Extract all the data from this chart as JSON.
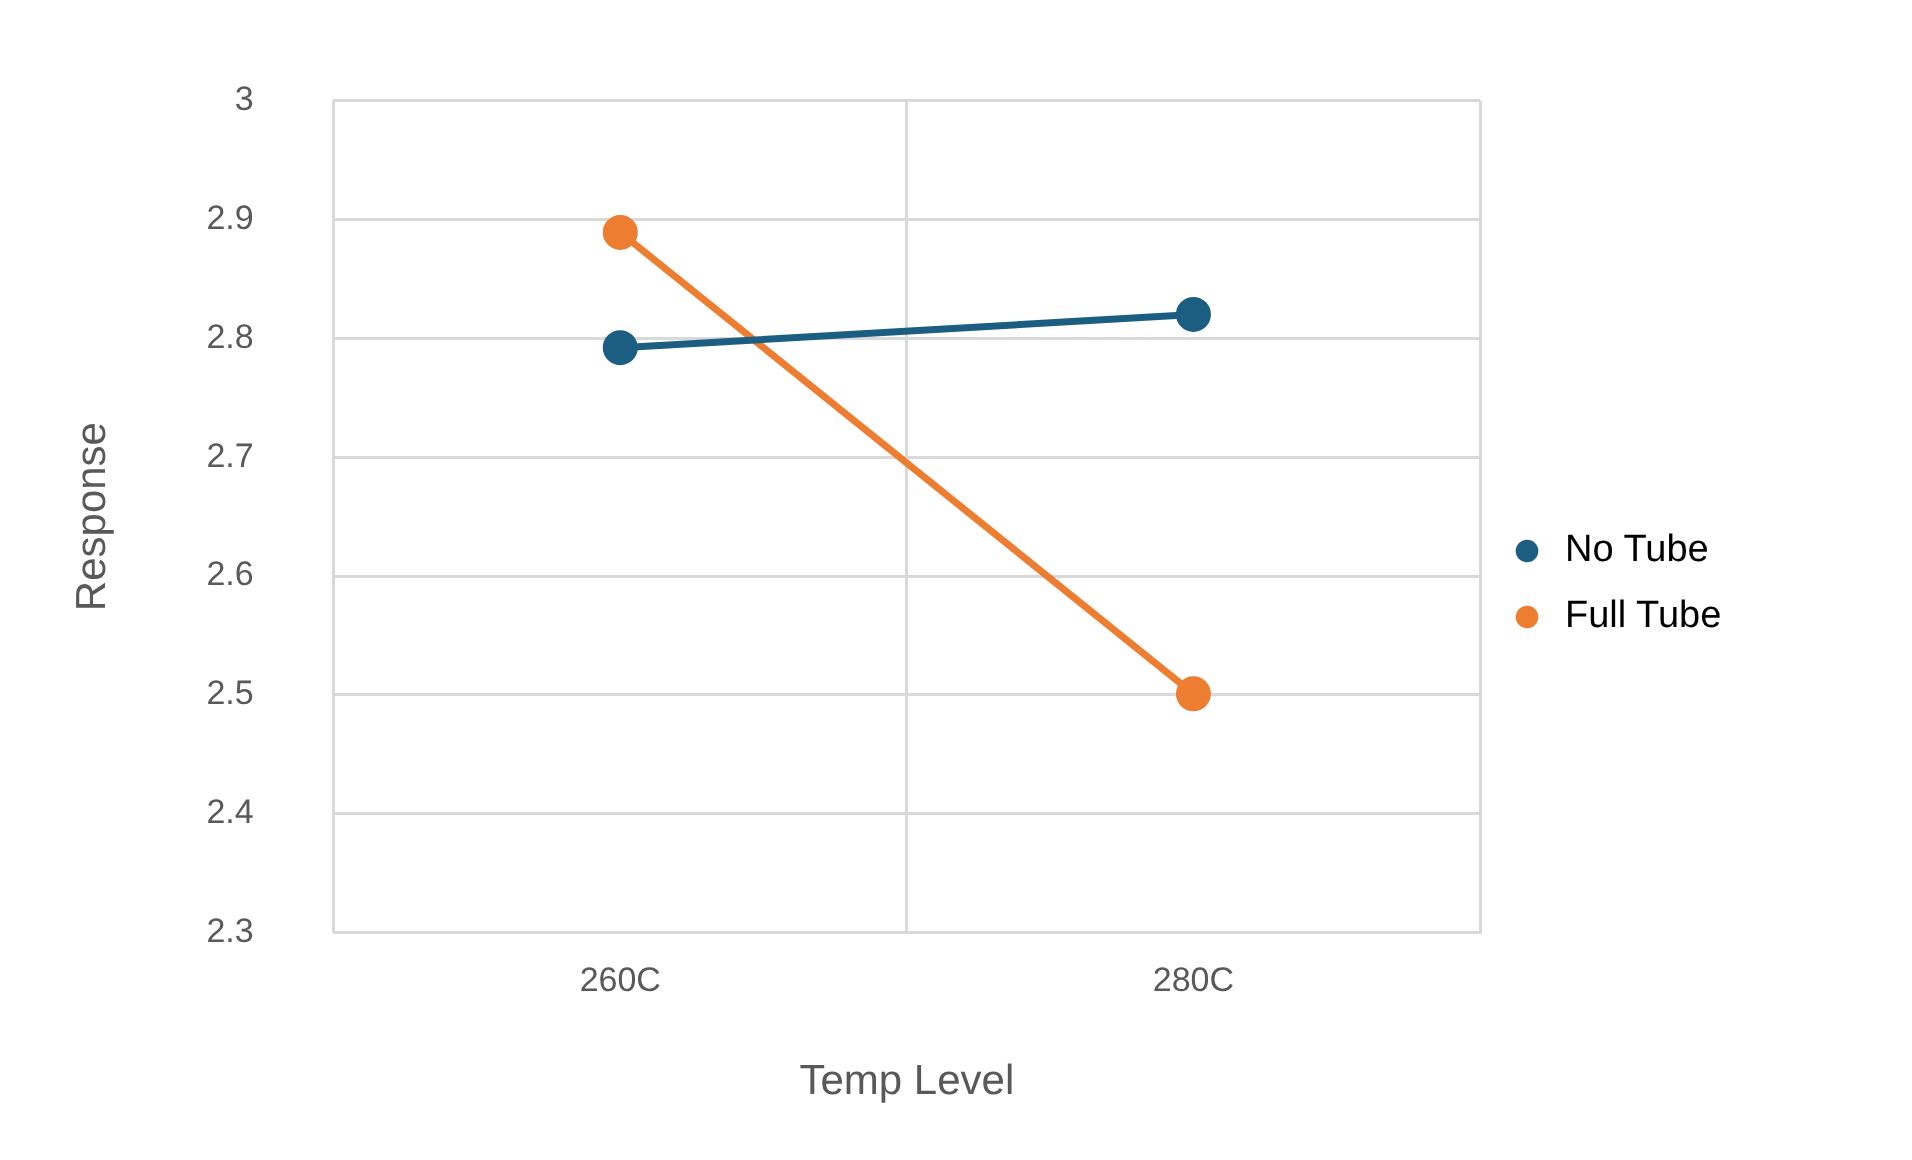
{
  "chart_data": {
    "type": "line",
    "xlabel": "Temp Level",
    "ylabel": "Response",
    "categories": [
      "260C",
      "280C"
    ],
    "series": [
      {
        "name": "No Tube",
        "color": "#1b5e82",
        "values": [
          2.792,
          2.82
        ]
      },
      {
        "name": "Full Tube",
        "color": "#ed7d31",
        "values": [
          2.889,
          2.501
        ]
      }
    ],
    "ylim": [
      2.3,
      3
    ],
    "yticks": [
      2.3,
      2.4,
      2.5,
      2.6,
      2.7,
      2.8,
      2.9,
      3
    ],
    "grid": true,
    "legend": "right",
    "marker": "circle",
    "line_style": "solid"
  }
}
